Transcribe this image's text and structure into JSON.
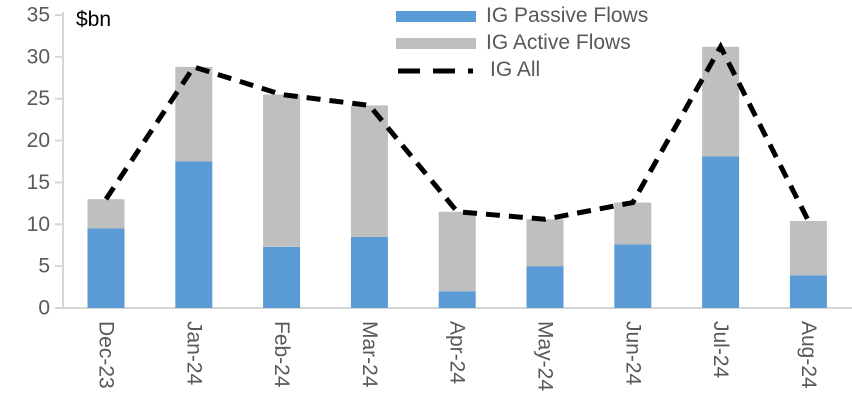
{
  "chart_data": {
    "type": "bar",
    "variant": "stacked-bars-with-dashed-line-overlay",
    "title": "",
    "unit_label": "$bn",
    "xlabel": "",
    "ylabel": "$bn",
    "categories": [
      "Dec-23",
      "Jan-24",
      "Feb-24",
      "Mar-24",
      "Apr-24",
      "May-24",
      "Jun-24",
      "Jul-24",
      "Aug-24"
    ],
    "series": [
      {
        "name": "IG Passive Flows",
        "type": "bar",
        "color": "#5B9BD5",
        "values": [
          9.5,
          17.5,
          7.3,
          8.5,
          2.0,
          5.0,
          7.6,
          18.1,
          3.9
        ]
      },
      {
        "name": "IG Active Flows",
        "type": "bar",
        "color": "#BFBFBF",
        "values": [
          3.5,
          11.3,
          18.2,
          15.7,
          9.5,
          5.6,
          5.0,
          13.1,
          6.5
        ]
      },
      {
        "name": "IG All",
        "type": "line",
        "style": "dashed",
        "color": "#000000",
        "values": [
          13.0,
          28.8,
          25.5,
          24.2,
          11.5,
          10.6,
          12.6,
          31.2,
          10.4
        ]
      }
    ],
    "ylim": [
      0,
      35
    ],
    "ytick_step": 5,
    "yticks": [
      0,
      5,
      10,
      15,
      20,
      25,
      30,
      35
    ],
    "grid": false,
    "legend_position": "top-center",
    "x_label_rotation_deg": 90,
    "axis_text_color": "#595959",
    "axis_line_color": "#D6D6D6"
  }
}
